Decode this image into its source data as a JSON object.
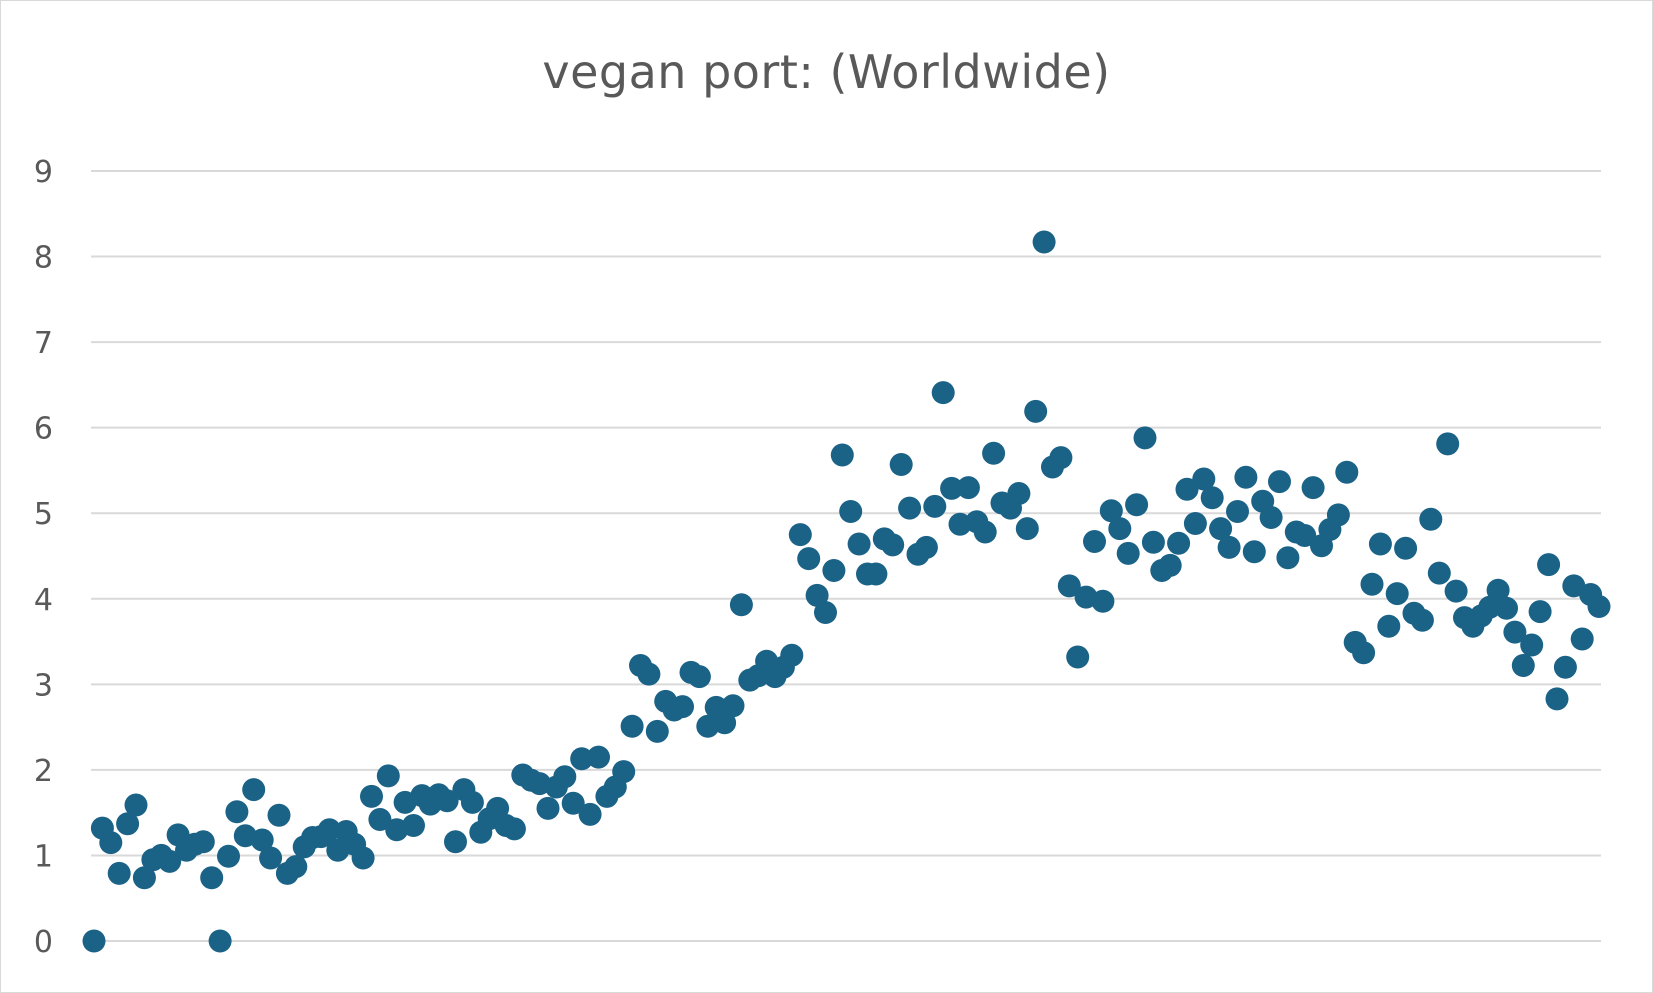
{
  "chart_data": {
    "type": "scatter",
    "title": "vegan port: (Worldwide)",
    "xlabel": "",
    "ylabel": "",
    "ylim": [
      0,
      9
    ],
    "yticks": [
      0,
      1,
      2,
      3,
      4,
      5,
      6,
      7,
      8,
      9
    ],
    "grid": true,
    "legend": "none",
    "marker_color": "#1b6287",
    "x": [
      1,
      2,
      3,
      4,
      5,
      6,
      7,
      8,
      9,
      10,
      11,
      12,
      13,
      14,
      15,
      16,
      17,
      18,
      19,
      20,
      21,
      22,
      23,
      24,
      25,
      26,
      27,
      28,
      29,
      30,
      31,
      32,
      33,
      34,
      35,
      36,
      37,
      38,
      39,
      40,
      41,
      42,
      43,
      44,
      45,
      46,
      47,
      48,
      49,
      50,
      51,
      52,
      53,
      54,
      55,
      56,
      57,
      58,
      59,
      60,
      61,
      62,
      63,
      64,
      65,
      66,
      67,
      68,
      69,
      70,
      71,
      72,
      73,
      74,
      75,
      76,
      77,
      78,
      79,
      80,
      81,
      82,
      83,
      84,
      85,
      86,
      87,
      88,
      89,
      90,
      91,
      92,
      93,
      94,
      95,
      96,
      97,
      98,
      99,
      100,
      101,
      102,
      103,
      104,
      105,
      106,
      107,
      108,
      109,
      110,
      111,
      112,
      113,
      114,
      115,
      116,
      117,
      118,
      119,
      120,
      121,
      122,
      123,
      124,
      125,
      126,
      127,
      128,
      129,
      130,
      131,
      132,
      133,
      134,
      135,
      136,
      137,
      138,
      139,
      140,
      141,
      142,
      143,
      144,
      145,
      146,
      147,
      148,
      149,
      150,
      151,
      152,
      153,
      154,
      155,
      156,
      157,
      158,
      159,
      160,
      161,
      162,
      163,
      164,
      165,
      166,
      167,
      168,
      169,
      170,
      171,
      172,
      173,
      174,
      175,
      176,
      177,
      178,
      179,
      180
    ],
    "y": [
      0,
      1.32,
      1.15,
      0.79,
      1.37,
      1.59,
      0.74,
      0.95,
      1.0,
      0.93,
      1.24,
      1.06,
      1.13,
      1.16,
      0.74,
      0.0,
      0.99,
      1.51,
      1.23,
      1.77,
      1.18,
      0.97,
      1.47,
      0.79,
      0.87,
      1.1,
      1.21,
      1.22,
      1.3,
      1.06,
      1.28,
      1.13,
      0.97,
      1.69,
      1.42,
      1.93,
      1.3,
      1.62,
      1.35,
      1.7,
      1.6,
      1.71,
      1.64,
      1.16,
      1.77,
      1.62,
      1.27,
      1.43,
      1.55,
      1.35,
      1.31,
      1.94,
      1.88,
      1.84,
      1.55,
      1.8,
      1.92,
      1.61,
      2.13,
      1.48,
      2.15,
      1.69,
      1.8,
      1.98,
      2.51,
      3.22,
      3.12,
      2.45,
      2.8,
      2.7,
      2.74,
      3.14,
      3.09,
      2.51,
      2.73,
      2.55,
      2.75,
      3.93,
      3.05,
      3.1,
      3.27,
      3.09,
      3.2,
      3.34,
      4.75,
      4.47,
      4.04,
      3.84,
      4.33,
      5.68,
      5.02,
      4.64,
      4.29,
      4.29,
      4.7,
      4.63,
      5.57,
      5.06,
      4.52,
      4.6,
      5.08,
      6.41,
      5.29,
      4.87,
      5.3,
      4.9,
      4.78,
      5.7,
      5.12,
      5.06,
      5.23,
      4.82,
      6.19,
      8.17,
      5.54,
      5.65,
      4.15,
      3.32,
      4.02,
      4.67,
      3.97,
      5.03,
      4.82,
      4.53,
      5.1,
      5.88,
      4.66,
      4.33,
      4.39,
      4.65,
      5.28,
      4.88,
      5.4,
      5.18,
      4.82,
      4.6,
      5.02,
      5.42,
      4.55,
      5.14,
      4.95,
      5.37,
      4.48,
      4.78,
      4.74,
      5.3,
      4.62,
      4.81,
      4.98,
      5.48,
      3.49,
      3.37,
      4.17,
      4.64,
      3.68,
      4.06,
      4.59,
      3.83,
      3.75,
      4.93,
      4.3,
      5.81,
      4.09,
      3.78,
      3.68,
      3.8,
      3.9,
      4.1,
      3.89,
      3.61,
      3.22,
      3.46,
      3.85,
      4.4,
      2.83,
      3.2,
      4.15,
      3.53,
      4.05,
      3.91
    ]
  }
}
